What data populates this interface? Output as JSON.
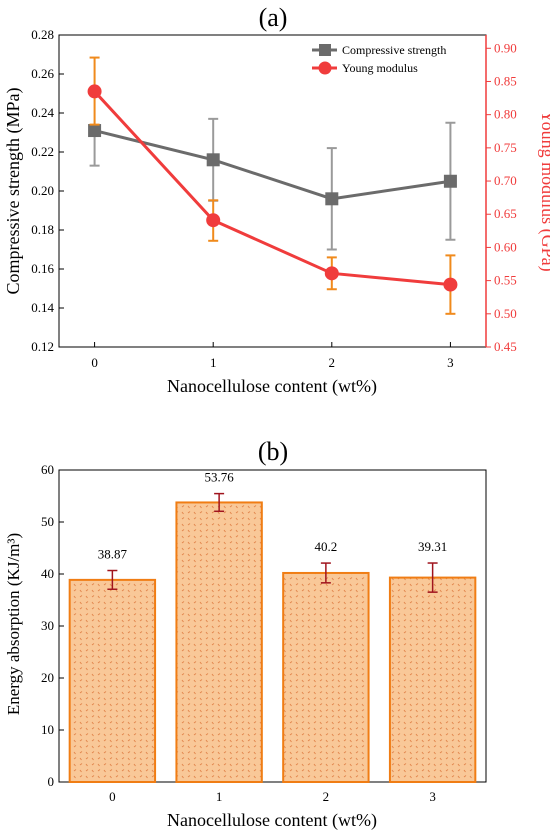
{
  "chart_data": [
    {
      "panel_label": "(a)",
      "type": "line",
      "x": [
        0,
        1,
        2,
        3
      ],
      "x_tick_labels": [
        "0",
        "1",
        "2",
        "3"
      ],
      "xlabel": "Nanocellulose content (wt%)",
      "xlim": [
        -0.3,
        3.3
      ],
      "ylabel": "Compressive strength (MPa)",
      "ylim": [
        0.12,
        0.28
      ],
      "y_ticks": [
        "0.12",
        "0.14",
        "0.16",
        "0.18",
        "0.20",
        "0.22",
        "0.24",
        "0.26",
        "0.28"
      ],
      "y2label": "Young modulus (GPa)",
      "y2lim": [
        0.45,
        0.92
      ],
      "y2_ticks": [
        "0.45",
        "0.50",
        "0.55",
        "0.60",
        "0.65",
        "0.70",
        "0.75",
        "0.80",
        "0.85",
        "0.90"
      ],
      "legend_position": "top-right",
      "series": [
        {
          "name": "Compressive strength",
          "axis": "left",
          "marker": "square",
          "color": "#6b6b6b",
          "error_color": "#9a9a9a",
          "values": [
            0.231,
            0.216,
            0.196,
            0.205
          ],
          "error_low": [
            0.213,
            0.195,
            0.17,
            0.175
          ],
          "error_high": [
            0.232,
            0.237,
            0.222,
            0.235
          ]
        },
        {
          "name": "Young modulus",
          "axis": "right",
          "marker": "circle",
          "color": "#f03c3c",
          "error_color": "#f08a1c",
          "values": [
            0.835,
            0.641,
            0.561,
            0.544
          ],
          "error_low": [
            0.785,
            0.61,
            0.537,
            0.5
          ],
          "error_high": [
            0.886,
            0.671,
            0.585,
            0.588
          ]
        }
      ],
      "grid": false
    },
    {
      "panel_label": "(b)",
      "type": "bar",
      "categories": [
        "0",
        "1",
        "2",
        "3"
      ],
      "values": [
        38.87,
        53.76,
        40.2,
        39.31
      ],
      "value_labels": [
        "38.87",
        "53.76",
        "40.2",
        "39.31"
      ],
      "errors": [
        1.8,
        1.7,
        1.9,
        2.8
      ],
      "xlabel": "Nanocellulose content (wt%)",
      "ylabel": "Energy absorption (KJ/m³)",
      "ylim": [
        0,
        60
      ],
      "y_ticks": [
        "0",
        "10",
        "20",
        "30",
        "40",
        "50",
        "60"
      ],
      "bar_fill": "#f9c898",
      "bar_edge": "#f07d14",
      "bar_pattern_color": "#e2874e",
      "error_color": "#a0141e",
      "grid": false
    }
  ]
}
